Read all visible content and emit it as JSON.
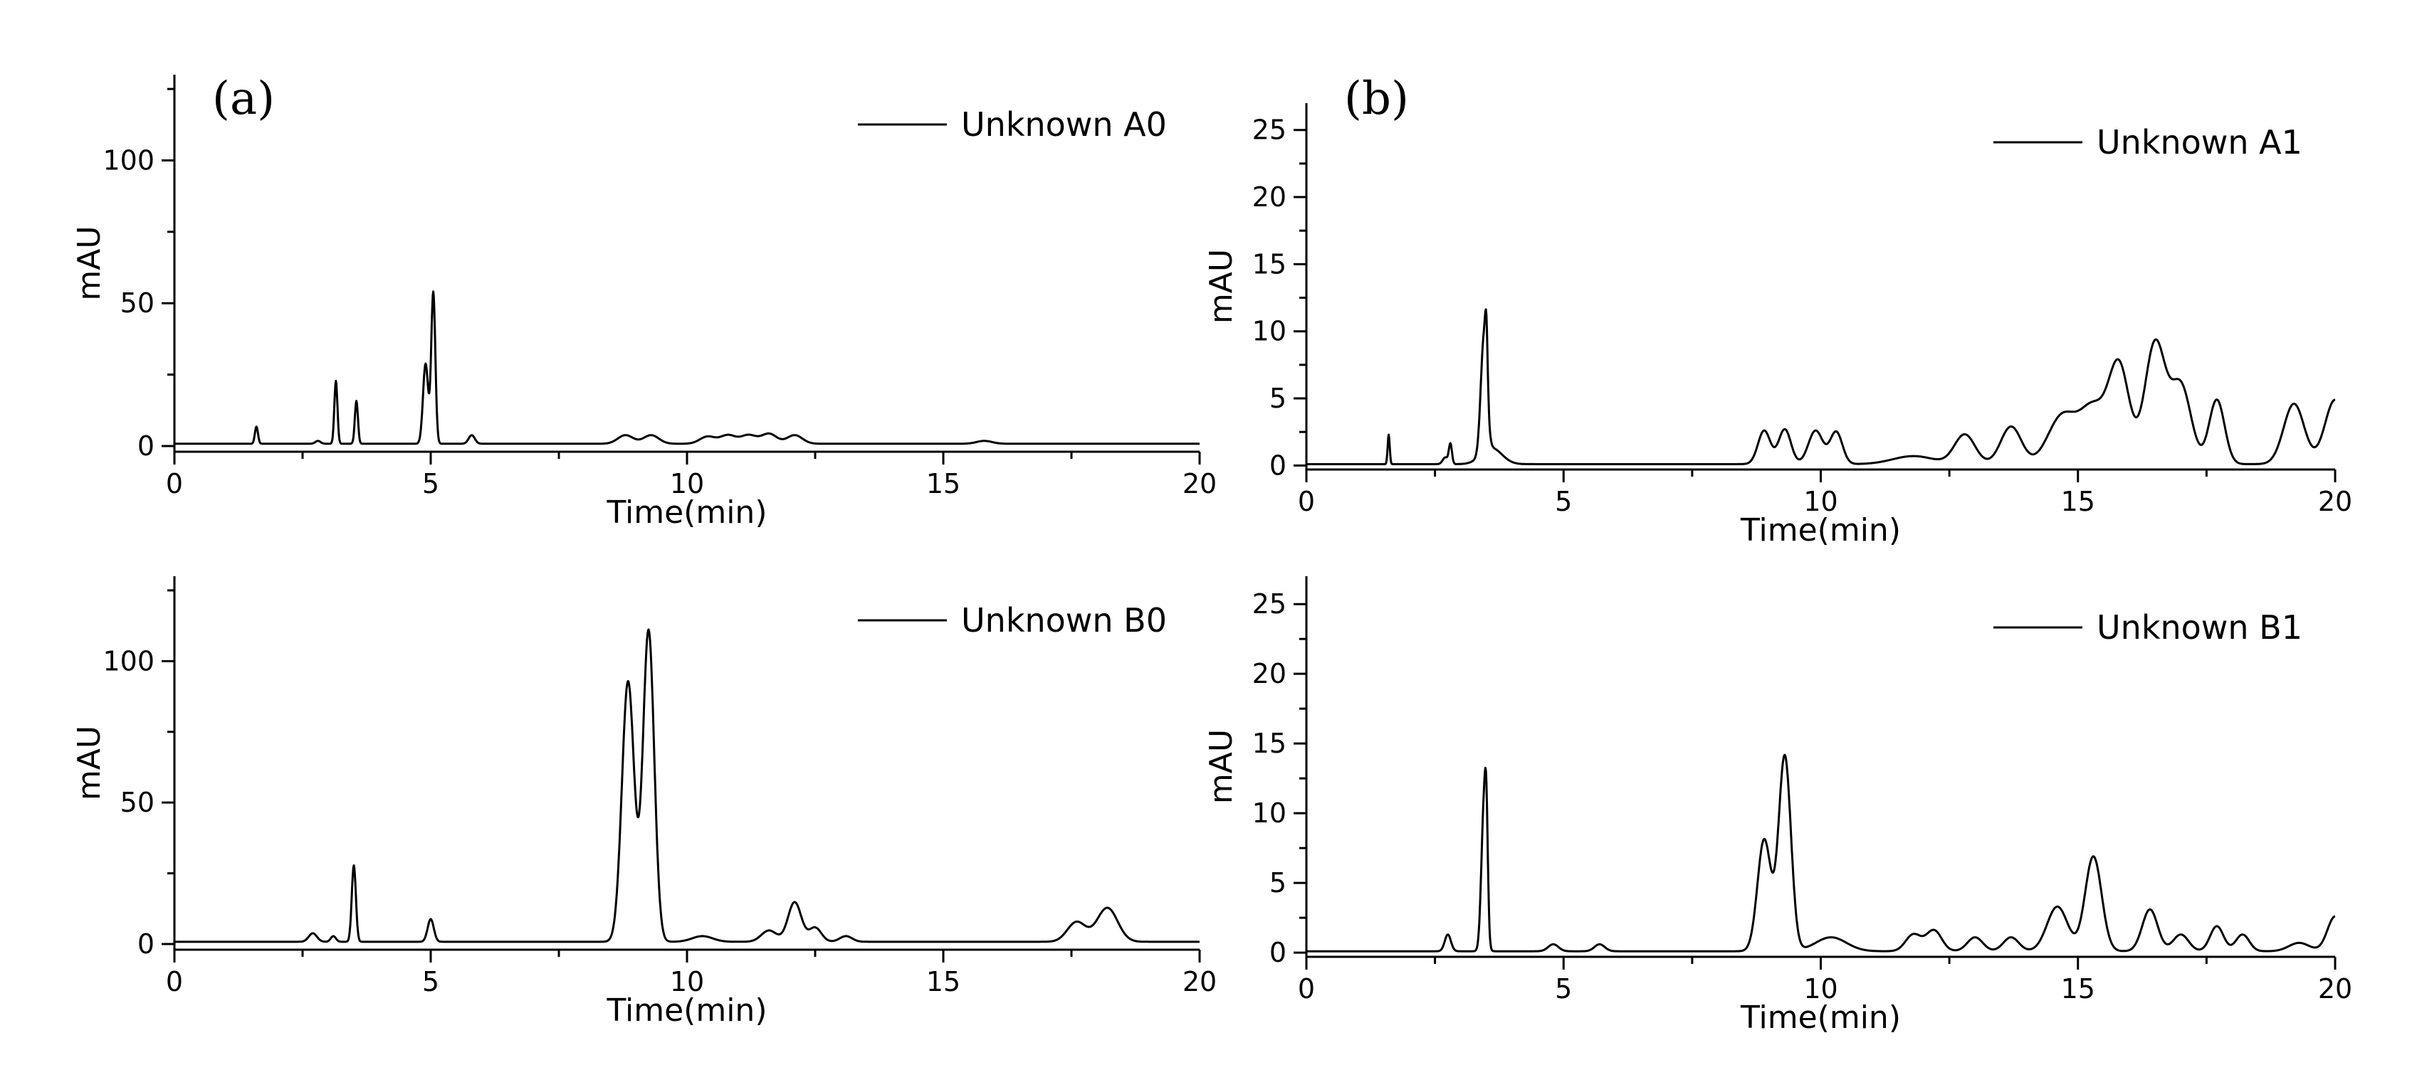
{
  "chart_data": [
    {
      "type": "line",
      "panel_label": "(a)",
      "xlabel": "Time(min)",
      "ylabel": "mAU",
      "xlim": [
        0,
        20
      ],
      "ylim": [
        -2,
        130
      ],
      "x_ticks": [
        0,
        5,
        10,
        15,
        20
      ],
      "y_ticks": [
        0,
        50,
        100
      ],
      "grid": false,
      "legend_position": "top-right",
      "baseline": 0.8,
      "series": [
        {
          "name": "Unknown A0",
          "peaks": [
            [
              1.6,
              6,
              0.03
            ],
            [
              2.8,
              1,
              0.05
            ],
            [
              3.15,
              22,
              0.03
            ],
            [
              3.55,
              15,
              0.03
            ],
            [
              4.9,
              28,
              0.05
            ],
            [
              5.05,
              53,
              0.04
            ],
            [
              5.8,
              3,
              0.06
            ],
            [
              8.8,
              3,
              0.15
            ],
            [
              9.3,
              3,
              0.15
            ],
            [
              10.4,
              2.5,
              0.15
            ],
            [
              10.8,
              3,
              0.15
            ],
            [
              11.2,
              3,
              0.15
            ],
            [
              11.6,
              3.5,
              0.15
            ],
            [
              12.1,
              3,
              0.15
            ],
            [
              15.8,
              1,
              0.15
            ]
          ]
        }
      ]
    },
    {
      "type": "line",
      "panel_label": "(b)",
      "xlabel": "Time(min)",
      "ylabel": "mAU",
      "xlim": [
        0,
        20
      ],
      "ylim": [
        -0.3,
        27
      ],
      "x_ticks": [
        0,
        5,
        10,
        15,
        20
      ],
      "y_ticks": [
        0,
        5,
        10,
        15,
        20,
        25
      ],
      "grid": false,
      "legend_position": "top-right",
      "baseline": 0.1,
      "series": [
        {
          "name": "Unknown A1",
          "peaks": [
            [
              1.6,
              2.2,
              0.02
            ],
            [
              2.7,
              0.5,
              0.05
            ],
            [
              2.8,
              1.5,
              0.03
            ],
            [
              3.45,
              8.5,
              0.06
            ],
            [
              3.5,
              4,
              0.025
            ],
            [
              3.6,
              1.2,
              0.2
            ],
            [
              8.9,
              2.5,
              0.12
            ],
            [
              9.3,
              2.6,
              0.12
            ],
            [
              9.9,
              2.5,
              0.14
            ],
            [
              10.3,
              2.4,
              0.12
            ],
            [
              12.8,
              2.2,
              0.2
            ],
            [
              13.7,
              2.8,
              0.2
            ],
            [
              14.7,
              3.6,
              0.28
            ],
            [
              15.3,
              4,
              0.25
            ],
            [
              15.8,
              7.2,
              0.2
            ],
            [
              16.5,
              9,
              0.2
            ],
            [
              17.0,
              5.8,
              0.2
            ],
            [
              17.7,
              4.8,
              0.15
            ],
            [
              19.2,
              4.5,
              0.2
            ],
            [
              20.0,
              4.8,
              0.2
            ],
            [
              11.8,
              0.6,
              0.4
            ]
          ]
        }
      ]
    },
    {
      "type": "line",
      "panel_label": "",
      "xlabel": "Time(min)",
      "ylabel": "mAU",
      "xlim": [
        0,
        20
      ],
      "ylim": [
        -2,
        130
      ],
      "x_ticks": [
        0,
        5,
        10,
        15,
        20
      ],
      "y_ticks": [
        0,
        50,
        100
      ],
      "grid": false,
      "legend_position": "top-right",
      "baseline": 0.8,
      "series": [
        {
          "name": "Unknown B0",
          "peaks": [
            [
              2.7,
              3,
              0.08
            ],
            [
              3.1,
              2,
              0.05
            ],
            [
              3.5,
              27,
              0.04
            ],
            [
              5.0,
              8,
              0.06
            ],
            [
              8.85,
              92,
              0.12
            ],
            [
              9.25,
              110,
              0.11
            ],
            [
              10.3,
              2,
              0.2
            ],
            [
              11.6,
              4,
              0.15
            ],
            [
              12.1,
              14,
              0.13
            ],
            [
              12.5,
              5,
              0.12
            ],
            [
              13.1,
              2,
              0.12
            ],
            [
              17.6,
              7,
              0.18
            ],
            [
              18.2,
              12,
              0.2
            ]
          ]
        }
      ]
    },
    {
      "type": "line",
      "panel_label": "",
      "xlabel": "Time(min)",
      "ylabel": "mAU",
      "xlim": [
        0,
        20
      ],
      "ylim": [
        -0.3,
        27
      ],
      "x_ticks": [
        0,
        5,
        10,
        15,
        20
      ],
      "y_ticks": [
        0,
        5,
        10,
        15,
        20,
        25
      ],
      "grid": false,
      "legend_position": "top-right",
      "baseline": 0.1,
      "series": [
        {
          "name": "Unknown B1",
          "peaks": [
            [
              2.75,
              1.2,
              0.06
            ],
            [
              3.45,
              10,
              0.05
            ],
            [
              3.5,
              6,
              0.03
            ],
            [
              4.8,
              0.5,
              0.1
            ],
            [
              5.7,
              0.5,
              0.1
            ],
            [
              8.9,
              8,
              0.13
            ],
            [
              9.3,
              14,
              0.12
            ],
            [
              10.2,
              1,
              0.3
            ],
            [
              11.8,
              1.2,
              0.15
            ],
            [
              12.2,
              1.5,
              0.15
            ],
            [
              13.0,
              1,
              0.15
            ],
            [
              13.7,
              1,
              0.15
            ],
            [
              14.6,
              3.2,
              0.2
            ],
            [
              15.3,
              6.8,
              0.16
            ],
            [
              16.4,
              3,
              0.15
            ],
            [
              17.0,
              1.2,
              0.15
            ],
            [
              17.7,
              1.8,
              0.13
            ],
            [
              18.2,
              1.2,
              0.13
            ],
            [
              19.3,
              0.6,
              0.2
            ],
            [
              20.0,
              2.5,
              0.15
            ]
          ]
        }
      ]
    }
  ]
}
